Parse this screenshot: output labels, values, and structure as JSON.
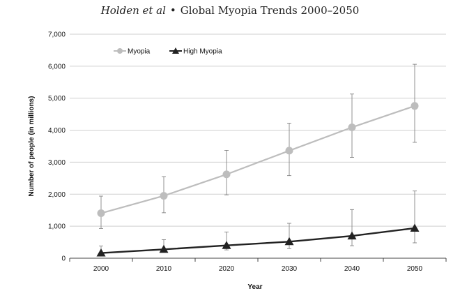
{
  "header": {
    "author": "Holden et al",
    "separator": "•",
    "title": "Global Myopia Trends 2000–2050"
  },
  "chart_data": {
    "type": "line",
    "xlabel": "Year",
    "ylabel": "Number of people (in millions)",
    "x": [
      2000,
      2010,
      2020,
      2030,
      2040,
      2050
    ],
    "ylim": [
      0,
      7000
    ],
    "yticks": [
      "0",
      "1,000",
      "2,000",
      "3,000",
      "4,000",
      "5,000",
      "6,000",
      "7,000"
    ],
    "ytick_values": [
      0,
      1000,
      2000,
      3000,
      4000,
      5000,
      6000,
      7000
    ],
    "grid": true,
    "legend_position": "top-left",
    "series": [
      {
        "name": "Myopia",
        "color": "#bdbdbd",
        "marker": "circle",
        "values": [
          1406,
          1950,
          2620,
          3360,
          4089,
          4758
        ],
        "error_low": [
          930,
          1420,
          1980,
          2580,
          3150,
          3620
        ],
        "error_high": [
          1940,
          2550,
          3370,
          4220,
          5130,
          6060
        ]
      },
      {
        "name": "High Myopia",
        "color": "#222222",
        "marker": "triangle",
        "values": [
          163,
          277,
          399,
          517,
          696,
          938
        ],
        "error_low": [
          100,
          190,
          260,
          300,
          390,
          480
        ],
        "error_high": [
          380,
          580,
          820,
          1090,
          1520,
          2100
        ]
      }
    ]
  }
}
